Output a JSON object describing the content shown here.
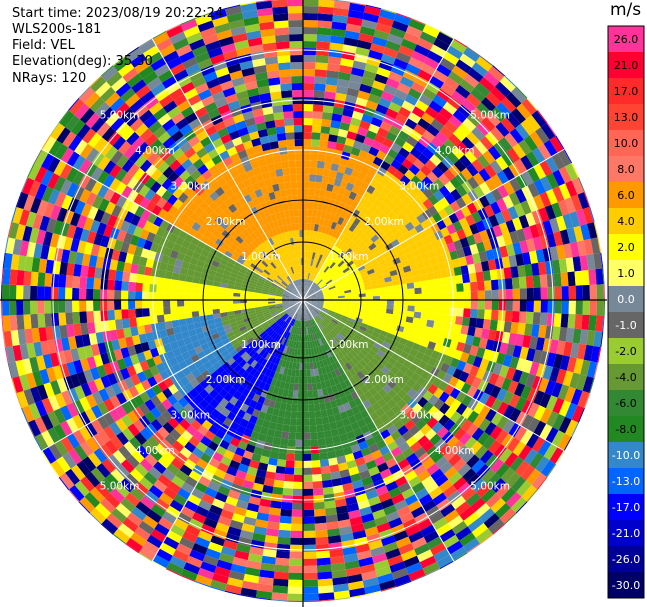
{
  "meta": {
    "start_time": "Start time: 2023/08/19 20:22:24",
    "instrument": "WLS200s-181",
    "field": "Field: VEL",
    "elevation": "Elevation(deg): 35.30",
    "nrays": "NRays: 120"
  },
  "colorbar": {
    "unit": "m/s",
    "ticks": [
      "26.0",
      "21.0",
      "17.0",
      "13.0",
      "10.0",
      "8.0",
      "6.0",
      "4.0",
      "2.0",
      "1.0",
      "0.0",
      "-1.0",
      "-2.0",
      "-4.0",
      "-6.0",
      "-8.0",
      "-10.0",
      "-13.0",
      "-17.0",
      "-21.0",
      "-26.0",
      "-30.0"
    ],
    "colors": [
      "#ff3399",
      "#ff0033",
      "#ff2a2a",
      "#ff4433",
      "#ff6655",
      "#ff7766",
      "#ff9900",
      "#ffcc00",
      "#ffff00",
      "#ffff66",
      "#778899",
      "#666666",
      "#99cc33",
      "#669933",
      "#338833",
      "#228822",
      "#3388cc",
      "#0066ff",
      "#0000ff",
      "#0000cc",
      "#000099",
      "#000066"
    ]
  },
  "chart_data": {
    "type": "heatmap",
    "projection": "polar (PPI)",
    "field": "VEL",
    "units": "m/s",
    "n_rays": 120,
    "range_rings_km": [
      1.0,
      2.0,
      3.0,
      4.0,
      5.0
    ],
    "ring_labels": [
      "1.00km",
      "2.00km",
      "3.00km",
      "4.00km",
      "5.00km"
    ],
    "vmin": -30.0,
    "vmax": 30.0,
    "valid_data_radius_km": 2.6,
    "max_range_km": 6.0
  }
}
